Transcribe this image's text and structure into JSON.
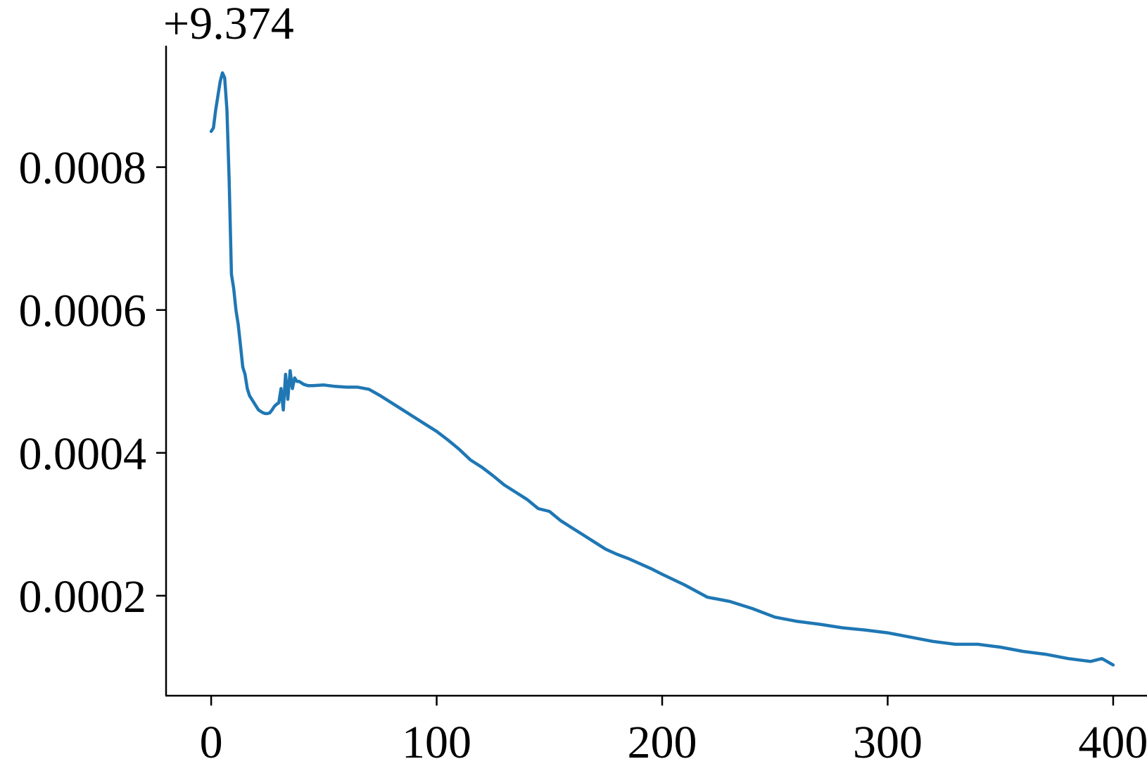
{
  "chart_data": {
    "type": "line",
    "title": "",
    "xlabel": "",
    "ylabel": "",
    "y_offset_label": "+9.374",
    "xlim": [
      -20,
      415
    ],
    "ylim": [
      6e-05,
      0.00097
    ],
    "x_ticks": [
      0,
      100,
      200,
      300,
      400
    ],
    "x_tick_labels": [
      "0",
      "100",
      "200",
      "300",
      "400"
    ],
    "y_ticks": [
      0.0002,
      0.0004,
      0.0006,
      0.0008
    ],
    "y_tick_labels": [
      "0.0002",
      "0.0004",
      "0.0006",
      "0.0008"
    ],
    "grid": false,
    "series": [
      {
        "color": "#1f77b4",
        "x": [
          0,
          1,
          2,
          3,
          4,
          5,
          6,
          7,
          8,
          9,
          10,
          11,
          12,
          13,
          14,
          15,
          16,
          17,
          18,
          19,
          20,
          21,
          22,
          23,
          24,
          25,
          26,
          27,
          28,
          29,
          30,
          31,
          32,
          33,
          34,
          35,
          36,
          37,
          38,
          39,
          40,
          41,
          42,
          43,
          44,
          45,
          50,
          55,
          60,
          65,
          70,
          75,
          80,
          85,
          90,
          95,
          100,
          105,
          110,
          115,
          120,
          125,
          130,
          135,
          140,
          145,
          150,
          155,
          160,
          165,
          170,
          175,
          180,
          185,
          190,
          195,
          200,
          210,
          220,
          230,
          240,
          250,
          260,
          270,
          280,
          290,
          300,
          310,
          320,
          330,
          340,
          350,
          360,
          370,
          380,
          390,
          395,
          400
        ],
        "y": [
          0.00085,
          0.000855,
          0.00088,
          0.0009,
          0.00092,
          0.000932,
          0.000925,
          0.00088,
          0.00078,
          0.00065,
          0.00063,
          0.0006,
          0.00058,
          0.00055,
          0.00052,
          0.00051,
          0.00049,
          0.00048,
          0.000475,
          0.00047,
          0.000465,
          0.00046,
          0.000458,
          0.000456,
          0.000455,
          0.000455,
          0.000456,
          0.00046,
          0.000465,
          0.000468,
          0.00047,
          0.00049,
          0.00046,
          0.00051,
          0.000475,
          0.000515,
          0.00049,
          0.000505,
          0.0005,
          0.0005,
          0.000498,
          0.000496,
          0.000495,
          0.000494,
          0.000494,
          0.000494,
          0.000495,
          0.000493,
          0.000492,
          0.000492,
          0.000489,
          0.00048,
          0.00047,
          0.00046,
          0.00045,
          0.00044,
          0.00043,
          0.000418,
          0.000405,
          0.00039,
          0.00038,
          0.000368,
          0.000355,
          0.000345,
          0.000335,
          0.000322,
          0.000318,
          0.000305,
          0.000295,
          0.000285,
          0.000275,
          0.000265,
          0.000258,
          0.000252,
          0.000245,
          0.000238,
          0.00023,
          0.000215,
          0.000198,
          0.000192,
          0.000182,
          0.00017,
          0.000164,
          0.00016,
          0.000155,
          0.000152,
          0.000148,
          0.000142,
          0.000136,
          0.000132,
          0.000132,
          0.000128,
          0.000122,
          0.000118,
          0.000112,
          0.000108,
          0.000112,
          0.000103
        ]
      }
    ]
  }
}
